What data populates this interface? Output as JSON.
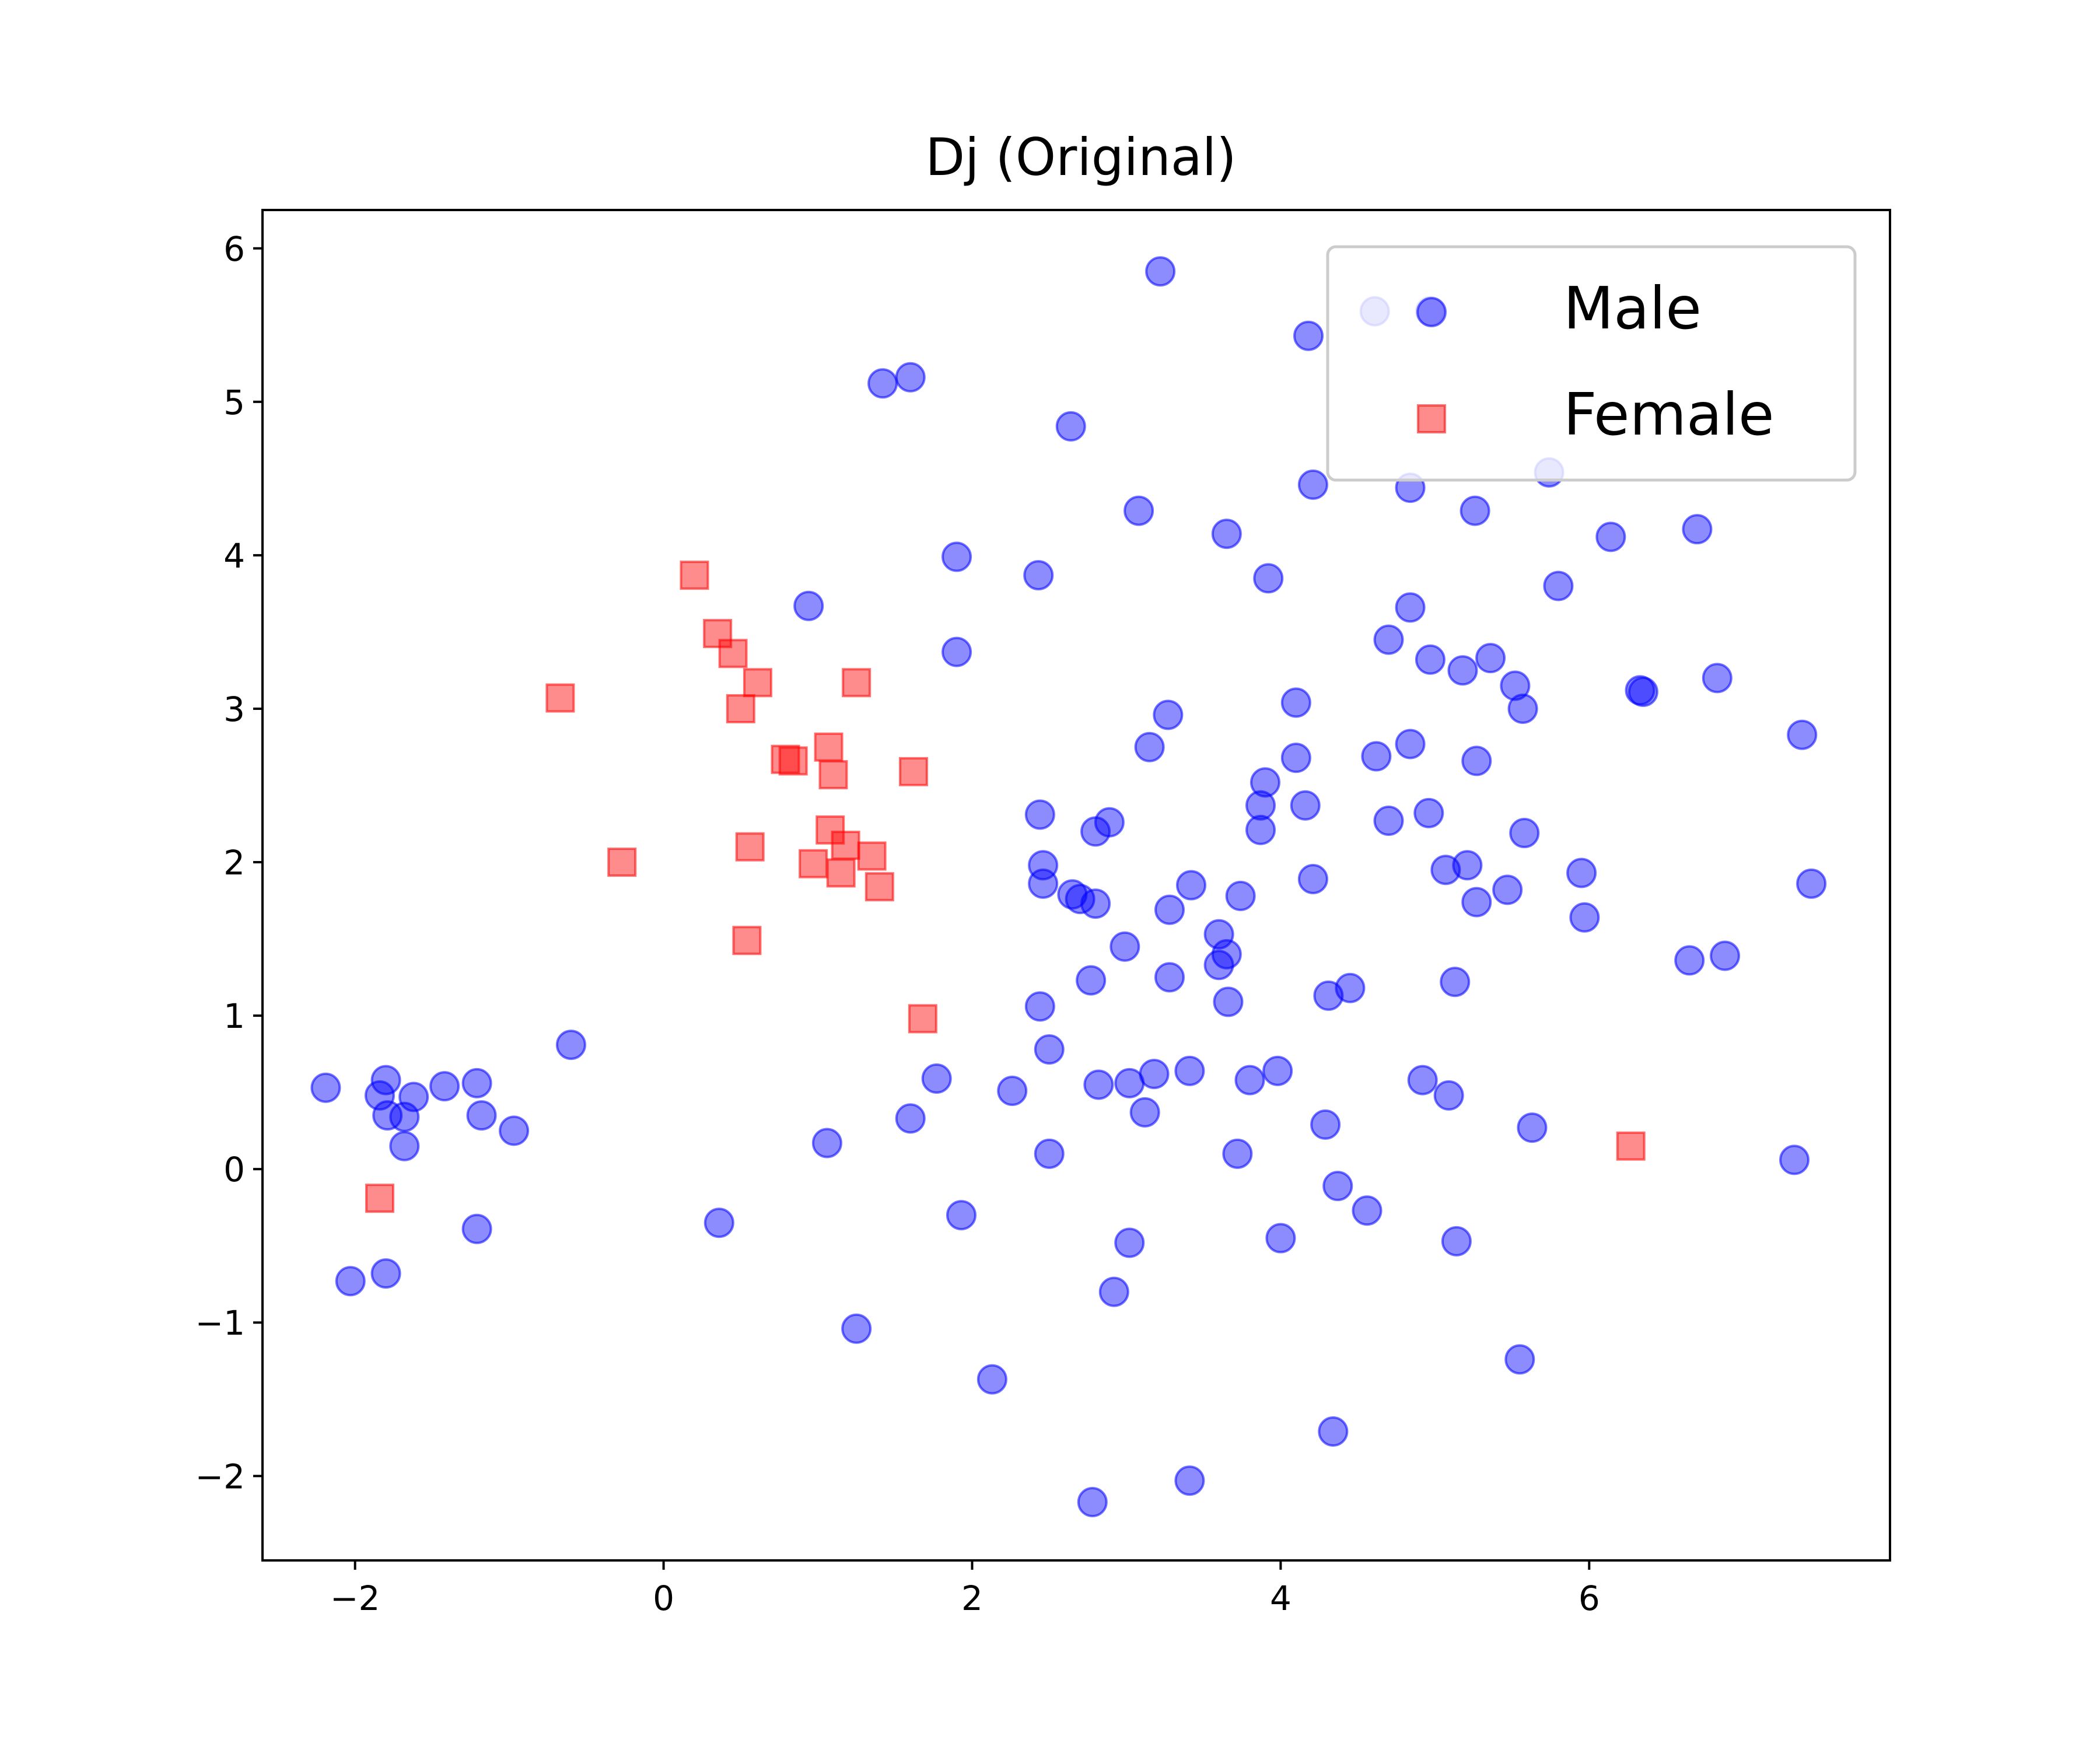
{
  "chart_data": {
    "type": "scatter",
    "title": "Dj (Original)",
    "xlabel": "",
    "ylabel": "",
    "xlim": [
      -2.6,
      7.95
    ],
    "ylim": [
      -2.55,
      6.25
    ],
    "xticks": [
      -2,
      0,
      2,
      4,
      6
    ],
    "yticks": [
      -2,
      -1,
      0,
      1,
      2,
      3,
      4,
      5,
      6
    ],
    "xtick_labels": [
      "−2",
      "0",
      "2",
      "4",
      "6"
    ],
    "ytick_labels": [
      "−2",
      "−1",
      "0",
      "1",
      "2",
      "3",
      "4",
      "5",
      "6"
    ],
    "grid": false,
    "legend_position": "top-right",
    "series": [
      {
        "name": "Male",
        "marker": "circle",
        "color": "#0000ff",
        "alpha": 0.45,
        "points": [
          [
            -2.19,
            0.53
          ],
          [
            -1.84,
            0.48
          ],
          [
            -1.8,
            0.58
          ],
          [
            -1.79,
            0.35
          ],
          [
            -1.68,
            0.34
          ],
          [
            -1.62,
            0.47
          ],
          [
            -1.68,
            0.15
          ],
          [
            -1.42,
            0.54
          ],
          [
            -1.21,
            0.56
          ],
          [
            -1.18,
            0.35
          ],
          [
            -0.97,
            0.25
          ],
          [
            -2.03,
            -0.73
          ],
          [
            -1.8,
            -0.68
          ],
          [
            -1.21,
            -0.39
          ],
          [
            -0.6,
            0.81
          ],
          [
            0.36,
            -0.35
          ],
          [
            0.94,
            3.67
          ],
          [
            1.06,
            0.17
          ],
          [
            1.25,
            -1.04
          ],
          [
            1.42,
            5.12
          ],
          [
            1.6,
            5.16
          ],
          [
            1.6,
            0.33
          ],
          [
            1.77,
            0.59
          ],
          [
            1.9,
            3.99
          ],
          [
            1.9,
            3.37
          ],
          [
            1.93,
            -0.3
          ],
          [
            2.13,
            -1.37
          ],
          [
            2.26,
            0.51
          ],
          [
            2.43,
            3.87
          ],
          [
            2.44,
            2.31
          ],
          [
            2.46,
            1.98
          ],
          [
            2.46,
            1.86
          ],
          [
            2.44,
            1.06
          ],
          [
            2.5,
            0.78
          ],
          [
            2.5,
            0.1
          ],
          [
            2.64,
            4.84
          ],
          [
            2.65,
            1.79
          ],
          [
            2.7,
            1.76
          ],
          [
            2.8,
            2.2
          ],
          [
            2.8,
            1.73
          ],
          [
            2.77,
            1.23
          ],
          [
            2.82,
            0.55
          ],
          [
            2.78,
            -2.17
          ],
          [
            2.89,
            2.26
          ],
          [
            2.92,
            -0.8
          ],
          [
            2.99,
            1.45
          ],
          [
            3.02,
            0.56
          ],
          [
            3.02,
            -0.48
          ],
          [
            3.08,
            4.29
          ],
          [
            3.12,
            0.37
          ],
          [
            3.15,
            2.75
          ],
          [
            3.18,
            0.62
          ],
          [
            3.22,
            5.85
          ],
          [
            3.27,
            2.96
          ],
          [
            3.28,
            1.69
          ],
          [
            3.28,
            1.25
          ],
          [
            3.42,
            1.85
          ],
          [
            3.41,
            0.64
          ],
          [
            3.41,
            -2.03
          ],
          [
            3.6,
            1.53
          ],
          [
            3.6,
            1.33
          ],
          [
            3.65,
            4.14
          ],
          [
            3.65,
            1.4
          ],
          [
            3.66,
            1.09
          ],
          [
            3.72,
            0.1
          ],
          [
            3.74,
            1.78
          ],
          [
            3.8,
            0.58
          ],
          [
            3.87,
            2.37
          ],
          [
            3.87,
            2.21
          ],
          [
            3.9,
            2.52
          ],
          [
            3.92,
            3.85
          ],
          [
            3.98,
            0.64
          ],
          [
            4.0,
            -0.45
          ],
          [
            4.1,
            3.04
          ],
          [
            4.1,
            2.68
          ],
          [
            4.16,
            2.37
          ],
          [
            4.18,
            5.43
          ],
          [
            4.21,
            4.46
          ],
          [
            4.21,
            1.89
          ],
          [
            4.29,
            0.29
          ],
          [
            4.31,
            1.13
          ],
          [
            4.34,
            -1.71
          ],
          [
            4.37,
            -0.11
          ],
          [
            4.45,
            1.18
          ],
          [
            4.56,
            -0.27
          ],
          [
            4.61,
            5.59
          ],
          [
            4.62,
            2.69
          ],
          [
            4.7,
            3.45
          ],
          [
            4.7,
            2.27
          ],
          [
            4.84,
            4.44
          ],
          [
            4.84,
            3.66
          ],
          [
            4.84,
            2.77
          ],
          [
            4.92,
            0.58
          ],
          [
            4.96,
            2.32
          ],
          [
            4.97,
            3.32
          ],
          [
            4.97,
            5.59
          ],
          [
            5.07,
            1.95
          ],
          [
            5.09,
            0.48
          ],
          [
            5.13,
            1.22
          ],
          [
            5.14,
            -0.47
          ],
          [
            5.18,
            3.25
          ],
          [
            5.21,
            1.98
          ],
          [
            5.26,
            4.29
          ],
          [
            5.27,
            2.66
          ],
          [
            5.27,
            1.74
          ],
          [
            5.36,
            3.33
          ],
          [
            5.47,
            1.82
          ],
          [
            5.52,
            3.15
          ],
          [
            5.55,
            -1.24
          ],
          [
            5.57,
            3.0
          ],
          [
            5.58,
            2.19
          ],
          [
            5.63,
            0.27
          ],
          [
            5.74,
            4.54
          ],
          [
            5.8,
            3.8
          ],
          [
            5.95,
            1.93
          ],
          [
            5.97,
            1.64
          ],
          [
            6.14,
            4.12
          ],
          [
            6.33,
            3.12
          ],
          [
            6.35,
            3.11
          ],
          [
            6.65,
            1.36
          ],
          [
            6.7,
            4.17
          ],
          [
            6.83,
            3.2
          ],
          [
            6.88,
            1.39
          ],
          [
            7.33,
            0.06
          ],
          [
            7.38,
            2.83
          ],
          [
            7.44,
            1.86
          ]
        ]
      },
      {
        "name": "Female",
        "marker": "square",
        "color": "#ff0000",
        "alpha": 0.45,
        "points": [
          [
            -1.84,
            -0.19
          ],
          [
            -0.67,
            3.07
          ],
          [
            -0.27,
            2.0
          ],
          [
            0.2,
            3.87
          ],
          [
            0.35,
            3.49
          ],
          [
            0.45,
            3.36
          ],
          [
            0.5,
            3.0
          ],
          [
            0.54,
            1.49
          ],
          [
            0.56,
            2.1
          ],
          [
            0.61,
            3.17
          ],
          [
            0.79,
            2.67
          ],
          [
            0.84,
            2.66
          ],
          [
            0.97,
            1.99
          ],
          [
            1.07,
            2.75
          ],
          [
            1.08,
            2.21
          ],
          [
            1.1,
            2.57
          ],
          [
            1.15,
            1.93
          ],
          [
            1.18,
            2.11
          ],
          [
            1.25,
            3.17
          ],
          [
            1.35,
            2.04
          ],
          [
            1.4,
            1.84
          ],
          [
            1.62,
            2.59
          ],
          [
            1.68,
            0.98
          ],
          [
            6.27,
            0.15
          ]
        ]
      }
    ]
  }
}
